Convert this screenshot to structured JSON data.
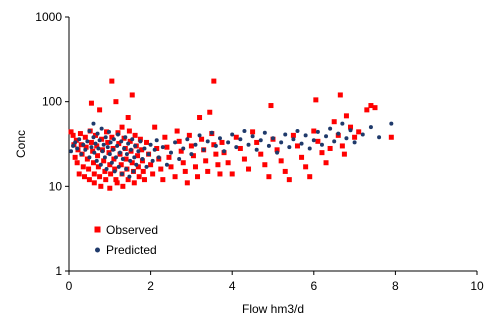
{
  "chart_data": {
    "type": "scatter",
    "xlabel": "Flow hm3/d",
    "ylabel": "Conc",
    "xlim": [
      0,
      10
    ],
    "ylim": [
      1,
      1000
    ],
    "y_scale": "log",
    "x_ticks": [
      0,
      2,
      4,
      6,
      8,
      10
    ],
    "y_ticks": [
      1,
      10,
      100,
      1000
    ],
    "grid": false,
    "legend_position": "lower-left",
    "series": [
      {
        "name": "Observed",
        "color": "#ff0000",
        "marker": "square",
        "points": [
          [
            0.05,
            44
          ],
          [
            0.1,
            40
          ],
          [
            0.12,
            31
          ],
          [
            0.15,
            22
          ],
          [
            0.18,
            35
          ],
          [
            0.2,
            19
          ],
          [
            0.22,
            27
          ],
          [
            0.25,
            14
          ],
          [
            0.28,
            42
          ],
          [
            0.3,
            31
          ],
          [
            0.32,
            24
          ],
          [
            0.35,
            17
          ],
          [
            0.38,
            13
          ],
          [
            0.4,
            38
          ],
          [
            0.42,
            29
          ],
          [
            0.45,
            21
          ],
          [
            0.48,
            16
          ],
          [
            0.5,
            12
          ],
          [
            0.52,
            45
          ],
          [
            0.55,
            33
          ],
          [
            0.55,
            96
          ],
          [
            0.58,
            26
          ],
          [
            0.6,
            19
          ],
          [
            0.62,
            14
          ],
          [
            0.62,
            11
          ],
          [
            0.65,
            40
          ],
          [
            0.68,
            30
          ],
          [
            0.7,
            23
          ],
          [
            0.72,
            17
          ],
          [
            0.75,
            13
          ],
          [
            0.75,
            80
          ],
          [
            0.78,
            10
          ],
          [
            0.8,
            36
          ],
          [
            0.82,
            27
          ],
          [
            0.85,
            20
          ],
          [
            0.88,
            15
          ],
          [
            0.9,
            12
          ],
          [
            0.92,
            44
          ],
          [
            0.95,
            33
          ],
          [
            0.98,
            25
          ],
          [
            1.0,
            9.5
          ],
          [
            1.0,
            18
          ],
          [
            1.02,
            14
          ],
          [
            1.05,
            175
          ],
          [
            1.05,
            38
          ],
          [
            1.08,
            28
          ],
          [
            1.1,
            21
          ],
          [
            1.12,
            16
          ],
          [
            1.15,
            12
          ],
          [
            1.15,
            100
          ],
          [
            1.18,
            11
          ],
          [
            1.2,
            43
          ],
          [
            1.22,
            32
          ],
          [
            1.25,
            24
          ],
          [
            1.28,
            18
          ],
          [
            1.3,
            14
          ],
          [
            1.3,
            50
          ],
          [
            1.32,
            10
          ],
          [
            1.35,
            37
          ],
          [
            1.38,
            28
          ],
          [
            1.4,
            21
          ],
          [
            1.42,
            16
          ],
          [
            1.45,
            12
          ],
          [
            1.45,
            65
          ],
          [
            1.48,
            45
          ],
          [
            1.5,
            34
          ],
          [
            1.52,
            26
          ],
          [
            1.55,
            19
          ],
          [
            1.55,
            120
          ],
          [
            1.58,
            15
          ],
          [
            1.6,
            11
          ],
          [
            1.62,
            40
          ],
          [
            1.65,
            30
          ],
          [
            1.68,
            23
          ],
          [
            1.7,
            17
          ],
          [
            1.72,
            13
          ],
          [
            1.75,
            36
          ],
          [
            1.78,
            27
          ],
          [
            1.8,
            20
          ],
          [
            1.82,
            15
          ],
          [
            1.85,
            12
          ],
          [
            1.9,
            33
          ],
          [
            1.95,
            24
          ],
          [
            2.0,
            18
          ],
          [
            2.05,
            14
          ],
          [
            2.1,
            50
          ],
          [
            2.15,
            28
          ],
          [
            2.2,
            21
          ],
          [
            2.25,
            16
          ],
          [
            2.3,
            12
          ],
          [
            2.35,
            38
          ],
          [
            2.4,
            29
          ],
          [
            2.45,
            22
          ],
          [
            2.5,
            17
          ],
          [
            2.6,
            13
          ],
          [
            2.65,
            45
          ],
          [
            2.7,
            34
          ],
          [
            2.75,
            26
          ],
          [
            2.8,
            19
          ],
          [
            2.85,
            15
          ],
          [
            2.9,
            11
          ],
          [
            2.95,
            40
          ],
          [
            3.0,
            30
          ],
          [
            3.05,
            23
          ],
          [
            3.1,
            17
          ],
          [
            3.15,
            13
          ],
          [
            3.2,
            65
          ],
          [
            3.25,
            36
          ],
          [
            3.3,
            27
          ],
          [
            3.35,
            20
          ],
          [
            3.4,
            15
          ],
          [
            3.45,
            75
          ],
          [
            3.5,
            42
          ],
          [
            3.55,
            175
          ],
          [
            3.55,
            31
          ],
          [
            3.6,
            24
          ],
          [
            3.65,
            18
          ],
          [
            3.7,
            14
          ],
          [
            3.75,
            33
          ],
          [
            3.8,
            25
          ],
          [
            3.9,
            19
          ],
          [
            4.0,
            14
          ],
          [
            4.1,
            38
          ],
          [
            4.2,
            28
          ],
          [
            4.3,
            21
          ],
          [
            4.4,
            16
          ],
          [
            4.5,
            44
          ],
          [
            4.6,
            33
          ],
          [
            4.7,
            24
          ],
          [
            4.8,
            18
          ],
          [
            4.9,
            13
          ],
          [
            4.95,
            90
          ],
          [
            5.0,
            36
          ],
          [
            5.1,
            27
          ],
          [
            5.2,
            20
          ],
          [
            5.3,
            15
          ],
          [
            5.4,
            12
          ],
          [
            5.5,
            40
          ],
          [
            5.6,
            30
          ],
          [
            5.7,
            22
          ],
          [
            5.8,
            17
          ],
          [
            5.9,
            13
          ],
          [
            6.0,
            45
          ],
          [
            6.05,
            105
          ],
          [
            6.1,
            34
          ],
          [
            6.2,
            25
          ],
          [
            6.3,
            19
          ],
          [
            6.4,
            28
          ],
          [
            6.5,
            58
          ],
          [
            6.6,
            40
          ],
          [
            6.65,
            120
          ],
          [
            6.7,
            30
          ],
          [
            6.75,
            24
          ],
          [
            6.8,
            68
          ],
          [
            6.9,
            50
          ],
          [
            7.0,
            38
          ],
          [
            7.1,
            44
          ],
          [
            7.3,
            80
          ],
          [
            7.4,
            90
          ],
          [
            7.5,
            85
          ],
          [
            7.9,
            38
          ]
        ]
      },
      {
        "name": "Predicted",
        "color": "#1f3a6b",
        "marker": "circle",
        "points": [
          [
            0.05,
            26
          ],
          [
            0.1,
            30
          ],
          [
            0.15,
            33
          ],
          [
            0.2,
            28
          ],
          [
            0.25,
            36
          ],
          [
            0.3,
            24
          ],
          [
            0.35,
            31
          ],
          [
            0.4,
            27
          ],
          [
            0.45,
            34
          ],
          [
            0.5,
            22
          ],
          [
            0.5,
            45
          ],
          [
            0.55,
            29
          ],
          [
            0.6,
            38
          ],
          [
            0.6,
            55
          ],
          [
            0.62,
            25
          ],
          [
            0.65,
            32
          ],
          [
            0.68,
            20
          ],
          [
            0.7,
            42
          ],
          [
            0.72,
            28
          ],
          [
            0.75,
            35
          ],
          [
            0.78,
            18
          ],
          [
            0.8,
            48
          ],
          [
            0.82,
            26
          ],
          [
            0.85,
            31
          ],
          [
            0.88,
            22
          ],
          [
            0.9,
            38
          ],
          [
            0.92,
            16
          ],
          [
            0.95,
            29
          ],
          [
            0.98,
            44
          ],
          [
            1.0,
            24
          ],
          [
            1.02,
            33
          ],
          [
            1.05,
            19
          ],
          [
            1.08,
            27
          ],
          [
            1.1,
            36
          ],
          [
            1.12,
            15
          ],
          [
            1.15,
            22
          ],
          [
            1.18,
            30
          ],
          [
            1.2,
            41
          ],
          [
            1.22,
            17
          ],
          [
            1.25,
            25
          ],
          [
            1.28,
            34
          ],
          [
            1.3,
            14
          ],
          [
            1.32,
            21
          ],
          [
            1.35,
            28
          ],
          [
            1.38,
            38
          ],
          [
            1.4,
            16
          ],
          [
            1.42,
            24
          ],
          [
            1.45,
            32
          ],
          [
            1.48,
            13
          ],
          [
            1.5,
            20
          ],
          [
            1.52,
            27
          ],
          [
            1.55,
            36
          ],
          [
            1.58,
            15
          ],
          [
            1.6,
            22
          ],
          [
            1.62,
            30
          ],
          [
            1.65,
            18
          ],
          [
            1.7,
            26
          ],
          [
            1.75,
            34
          ],
          [
            1.8,
            21
          ],
          [
            1.85,
            28
          ],
          [
            1.9,
            17
          ],
          [
            1.95,
            24
          ],
          [
            2.0,
            31
          ],
          [
            2.05,
            20
          ],
          [
            2.1,
            27
          ],
          [
            2.15,
            35
          ],
          [
            2.2,
            22
          ],
          [
            2.3,
            29
          ],
          [
            2.4,
            18
          ],
          [
            2.5,
            25
          ],
          [
            2.6,
            33
          ],
          [
            2.7,
            21
          ],
          [
            2.8,
            28
          ],
          [
            2.9,
            36
          ],
          [
            3.0,
            24
          ],
          [
            3.1,
            31
          ],
          [
            3.2,
            40
          ],
          [
            3.3,
            27
          ],
          [
            3.4,
            34
          ],
          [
            3.5,
            43
          ],
          [
            3.6,
            30
          ],
          [
            3.7,
            37
          ],
          [
            3.8,
            26
          ],
          [
            3.9,
            33
          ],
          [
            4.0,
            41
          ],
          [
            4.1,
            29
          ],
          [
            4.2,
            36
          ],
          [
            4.3,
            45
          ],
          [
            4.4,
            31
          ],
          [
            4.5,
            39
          ],
          [
            4.6,
            27
          ],
          [
            4.7,
            35
          ],
          [
            4.8,
            43
          ],
          [
            4.9,
            30
          ],
          [
            5.0,
            37
          ],
          [
            5.1,
            25
          ],
          [
            5.2,
            33
          ],
          [
            5.3,
            41
          ],
          [
            5.4,
            29
          ],
          [
            5.5,
            36
          ],
          [
            5.6,
            45
          ],
          [
            5.7,
            32
          ],
          [
            5.8,
            40
          ],
          [
            5.9,
            28
          ],
          [
            6.0,
            35
          ],
          [
            6.1,
            44
          ],
          [
            6.2,
            31
          ],
          [
            6.3,
            39
          ],
          [
            6.4,
            48
          ],
          [
            6.5,
            34
          ],
          [
            6.6,
            42
          ],
          [
            6.7,
            55
          ],
          [
            6.8,
            37
          ],
          [
            6.9,
            46
          ],
          [
            7.0,
            33
          ],
          [
            7.2,
            41
          ],
          [
            7.4,
            50
          ],
          [
            7.6,
            38
          ],
          [
            7.9,
            55
          ]
        ]
      }
    ]
  }
}
